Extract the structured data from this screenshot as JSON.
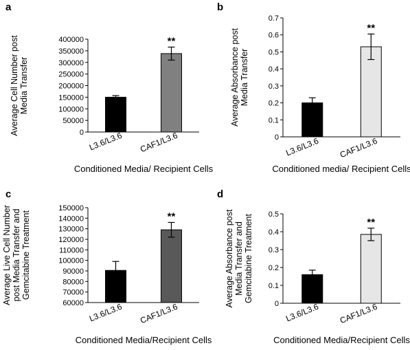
{
  "chart_data": [
    {
      "panel": "a",
      "type": "bar",
      "categories": [
        "L3.6/L3.6",
        "CAF1/L3.6"
      ],
      "values": [
        150000,
        338000
      ],
      "errors": [
        7000,
        28000
      ],
      "colors": [
        "#000000",
        "#808080"
      ],
      "significance": [
        "",
        "**"
      ],
      "ylabel_lines": [
        "Average Cell Number post",
        "Media Transfer"
      ],
      "xlabel": "Conditioned Media/ Recipient Cells",
      "ylim": [
        0,
        400000
      ],
      "ticks": [
        0,
        50000,
        100000,
        150000,
        200000,
        250000,
        300000,
        350000,
        400000
      ],
      "tick_labels": [
        "0",
        "50000",
        "100000",
        "150000",
        "200000",
        "250000",
        "300000",
        "350000",
        "400000"
      ]
    },
    {
      "panel": "b",
      "type": "bar",
      "categories": [
        "L3.6/L3.6",
        "CAF1/L3.6"
      ],
      "values": [
        0.2,
        0.53
      ],
      "errors": [
        0.03,
        0.075
      ],
      "colors": [
        "#000000",
        "#e6e6e6"
      ],
      "significance": [
        "",
        "**"
      ],
      "ylabel_lines": [
        "Average Absorbance post",
        "Media Transfer"
      ],
      "xlabel": "Conditioned media/ Recipient Cells",
      "ylim": [
        0,
        0.7
      ],
      "ticks": [
        0,
        0.1,
        0.2,
        0.3,
        0.4,
        0.5,
        0.6,
        0.7
      ],
      "tick_labels": [
        "0",
        "0.1",
        "0.2",
        "0.3",
        "0.4",
        "0.5",
        "0.6",
        "0.7"
      ]
    },
    {
      "panel": "c",
      "type": "bar",
      "categories": [
        "L3.6/L3.6",
        "CAF1/L3.6"
      ],
      "values": [
        90500,
        129000
      ],
      "errors": [
        8500,
        7000
      ],
      "colors": [
        "#000000",
        "#595959"
      ],
      "significance": [
        "",
        "**"
      ],
      "ylabel_lines": [
        "Average Live Cell Number",
        "post Media Transfer and",
        "Gemcitabine Treatment"
      ],
      "xlabel": "Conditioned Media/Recipient Cells",
      "ylim": [
        60000,
        150000
      ],
      "ticks": [
        60000,
        70000,
        80000,
        90000,
        100000,
        110000,
        120000,
        130000,
        140000,
        150000
      ],
      "tick_labels": [
        "60000",
        "70000",
        "80000",
        "90000",
        "100000",
        "110000",
        "120000",
        "130000",
        "140000",
        "150000"
      ]
    },
    {
      "panel": "d",
      "type": "bar",
      "categories": [
        "L3.6/L3.6",
        "CAF1/L3.6"
      ],
      "values": [
        0.16,
        0.385
      ],
      "errors": [
        0.025,
        0.035
      ],
      "colors": [
        "#000000",
        "#e6e6e6"
      ],
      "significance": [
        "",
        "**"
      ],
      "ylabel_lines": [
        "Average Absorbance post",
        "Media Transfer and",
        "Gemcitabine Treatment"
      ],
      "xlabel": "Conditioned Media/Recipient Cells",
      "ylim": [
        0,
        0.5
      ],
      "ticks": [
        0,
        0.1,
        0.2,
        0.3,
        0.4,
        0.5
      ],
      "tick_labels": [
        "0",
        "0.1",
        "0.2",
        "0.3",
        "0.4",
        "0.5"
      ]
    }
  ]
}
